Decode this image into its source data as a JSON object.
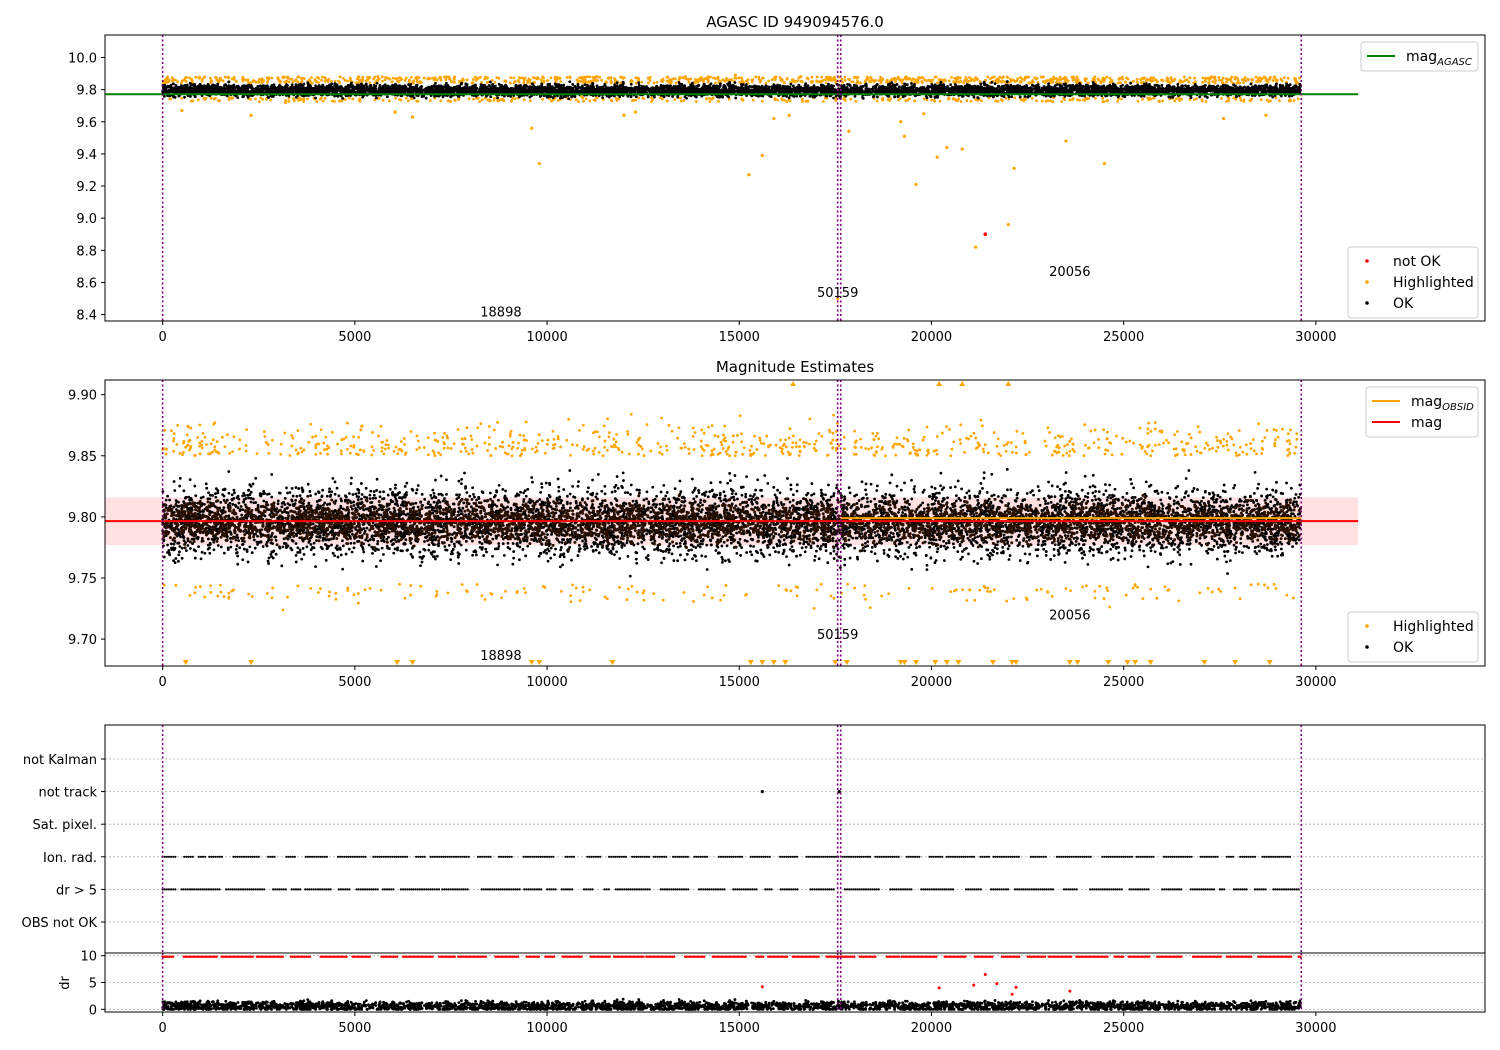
{
  "chart_data": [
    {
      "type": "scatter",
      "title": "AGASC ID 949094576.0",
      "xlim": [
        -1500,
        34400
      ],
      "ylim": [
        8.36,
        10.14
      ],
      "xticks": [
        0,
        5000,
        10000,
        15000,
        20000,
        25000,
        30000
      ],
      "yticks": [
        8.4,
        8.6,
        8.8,
        9.0,
        9.2,
        9.4,
        9.6,
        9.8,
        10.0
      ],
      "ytick_decimals": 1,
      "vlines": [
        0,
        17560,
        17640,
        29620
      ],
      "obsid_labels": [
        {
          "text": "18898",
          "x": 8800,
          "y": 8.42
        },
        {
          "text": "50159",
          "x": 17560,
          "y": 8.54
        },
        {
          "text": "20056",
          "x": 23600,
          "y": 8.67
        }
      ],
      "lines": [
        {
          "name": "mag_AGASC",
          "color": "#008000",
          "x": [
            -1500,
            31100
          ],
          "y": [
            9.771,
            9.771
          ]
        }
      ],
      "legend_top": {
        "position": "top-right",
        "entries": [
          {
            "label": "mag",
            "sub": "AGASC",
            "color": "#008000",
            "kind": "line"
          }
        ]
      },
      "legend_bottom": {
        "position": "bottom-right",
        "entries": [
          {
            "label": "not OK",
            "color": "#ff0000",
            "kind": "dot"
          },
          {
            "label": "Highlighted",
            "color": "#ffa500",
            "kind": "dot"
          },
          {
            "label": "OK",
            "color": "#000000",
            "kind": "dot"
          }
        ]
      },
      "series": [
        {
          "name": "OK",
          "color": "#000000",
          "band": {
            "x_start": 0,
            "x_end": 29600,
            "center": 9.795,
            "spread": 0.04
          }
        },
        {
          "name": "Highlighted",
          "color": "#ffa500",
          "x": [
            500,
            1100,
            2300,
            3200,
            4100,
            5200,
            6050,
            6500,
            7700,
            9600,
            9800,
            10900,
            12000,
            12300,
            15250,
            15600,
            15900,
            16300,
            17560,
            17850,
            19200,
            19300,
            19600,
            19800,
            20150,
            20400,
            20800,
            21150,
            22000,
            22150,
            23500,
            24500,
            26500,
            27600,
            28700,
            1500,
            3000,
            5600,
            8200,
            11300,
            13600,
            14900,
            16600,
            18400,
            21700,
            24900,
            27200
          ],
          "y": [
            9.67,
            9.74,
            9.64,
            9.72,
            9.74,
            9.86,
            9.66,
            9.63,
            9.74,
            9.56,
            9.34,
            9.76,
            9.64,
            9.66,
            9.27,
            9.39,
            9.62,
            9.64,
            8.5,
            9.54,
            9.6,
            9.51,
            9.21,
            9.65,
            9.38,
            9.44,
            9.43,
            8.82,
            8.96,
            9.31,
            9.48,
            9.34,
            9.74,
            9.62,
            9.64,
            9.87,
            9.87,
            9.88,
            9.87,
            9.88,
            9.88,
            9.89,
            9.88,
            9.85,
            9.86,
            9.87,
            9.87
          ]
        },
        {
          "name": "not OK",
          "color": "#ff0000",
          "x": [
            21400
          ],
          "y": [
            8.9
          ]
        }
      ]
    },
    {
      "type": "scatter",
      "title": "Magnitude Estimates",
      "xlim": [
        -1500,
        34400
      ],
      "ylim": [
        9.678,
        9.912
      ],
      "xticks": [
        0,
        5000,
        10000,
        15000,
        20000,
        25000,
        30000
      ],
      "yticks": [
        9.7,
        9.75,
        9.8,
        9.85,
        9.9
      ],
      "ytick_decimals": 2,
      "vlines": [
        0,
        17560,
        17640,
        29620
      ],
      "obsid_labels": [
        {
          "text": "18898",
          "x": 8800,
          "y": 9.687
        },
        {
          "text": "50159",
          "x": 17560,
          "y": 9.704
        },
        {
          "text": "20056",
          "x": 23600,
          "y": 9.72
        }
      ],
      "shaded_band": {
        "x": [
          -1500,
          31100
        ],
        "y": [
          9.777,
          9.816
        ],
        "color": "#ffc8c8"
      },
      "lines": [
        {
          "name": "mag",
          "color": "#ff0000",
          "x": [
            -1500,
            31100
          ],
          "y": [
            9.7965,
            9.7965
          ]
        },
        {
          "name": "mag_OBSID",
          "color": "#ffa500",
          "x": [
            17640,
            29620
          ],
          "y": [
            9.799,
            9.799
          ]
        }
      ],
      "legend_top": {
        "position": "top-right",
        "entries": [
          {
            "label": "mag",
            "sub": "OBSID",
            "color": "#ffa500",
            "kind": "line"
          },
          {
            "label": "mag",
            "sub": "",
            "color": "#ff0000",
            "kind": "line"
          }
        ]
      },
      "legend_bottom": {
        "position": "bottom-right",
        "entries": [
          {
            "label": "Highlighted",
            "color": "#ffa500",
            "kind": "dot"
          },
          {
            "label": "OK",
            "color": "#000000",
            "kind": "dot"
          }
        ]
      },
      "series": [
        {
          "name": "OK",
          "color": "#000000",
          "band": {
            "x_start": 0,
            "x_end": 29600,
            "center": 9.796,
            "spread": 0.028
          }
        },
        {
          "name": "Highlighted",
          "color": "#ffa500",
          "band": {
            "x_start": 0,
            "x_end": 29600,
            "upper": 9.85,
            "lower": 9.745
          }
        }
      ],
      "below_markers": [
        600,
        2300,
        6100,
        6500,
        9600,
        9800,
        11700,
        15300,
        15600,
        15900,
        16200,
        17500,
        17800,
        19200,
        19300,
        19600,
        20100,
        20400,
        20700,
        21600,
        22100,
        22200,
        23600,
        23800,
        24600,
        25100,
        25300,
        25700,
        27100,
        27900,
        28800
      ],
      "above_markers": [
        16400,
        20200,
        20800,
        22000
      ]
    },
    {
      "type": "scatter",
      "title": "",
      "xlim": [
        -1500,
        34400
      ],
      "categories": [
        "not Kalman",
        "not track",
        "Sat. pixel.",
        "Ion. rad.",
        "dr > 5",
        "OBS not OK"
      ],
      "vlines": [
        0,
        17560,
        17640,
        29620
      ],
      "flag_rows": [
        {
          "name": "not track",
          "x": [
            15600,
            17600
          ]
        },
        {
          "name": "Ion. rad.",
          "x_start": 0,
          "x_end": 29600
        },
        {
          "name": "dr > 5",
          "x_start": 0,
          "x_end": 29600
        }
      ]
    },
    {
      "type": "scatter",
      "title": "",
      "ylabel": "dr",
      "xlim": [
        -1500,
        34400
      ],
      "ylim": [
        -0.5,
        10.5
      ],
      "xticks": [
        0,
        5000,
        10000,
        15000,
        20000,
        25000,
        30000
      ],
      "yticks": [
        0,
        5,
        10
      ],
      "ytick_decimals": 0,
      "vlines": [
        0,
        17560,
        17640,
        29620
      ],
      "series": [
        {
          "name": "OK",
          "color": "#000000",
          "band": {
            "x_start": 0,
            "x_end": 29600,
            "center": 0.6,
            "spread": 0.9
          }
        },
        {
          "name": "clipped",
          "color": "#ff0000",
          "x_start": 0,
          "x_end": 29600,
          "y": 9.8
        },
        {
          "name": "outliers",
          "color": "#ff0000",
          "x": [
            15600,
            20200,
            21100,
            21400,
            21700,
            22100,
            22200,
            23600
          ],
          "y": [
            4.2,
            4.0,
            4.5,
            6.5,
            4.8,
            2.8,
            4.1,
            3.4
          ]
        }
      ]
    }
  ]
}
